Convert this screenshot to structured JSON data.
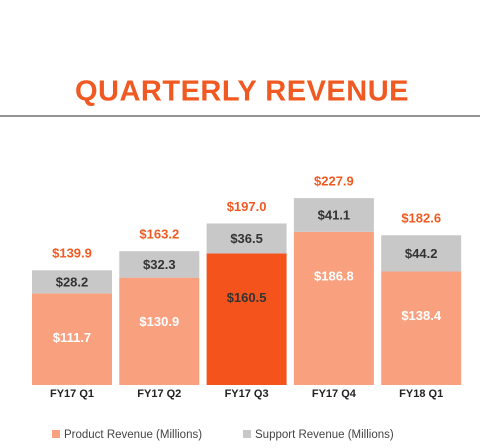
{
  "chart_data": {
    "type": "stacked-bar",
    "title": "QUARTERLY REVENUE",
    "categories": [
      "FY17 Q1",
      "FY17 Q2",
      "FY17 Q3",
      "FY17 Q4",
      "FY18 Q1"
    ],
    "series": [
      {
        "name": "Product Revenue (Millions)",
        "color": "#f9a07f",
        "colors": [
          "#f9a07f",
          "#f9a07f",
          "#f4541c",
          "#f9a07f",
          "#f9a07f"
        ],
        "label_color": "#ffffff",
        "label_colors": [
          "#ffffff",
          "#ffffff",
          "#333333",
          "#ffffff",
          "#ffffff"
        ],
        "values": [
          111.7,
          130.9,
          160.5,
          186.8,
          138.4
        ],
        "value_labels": [
          "$111.7",
          "$130.9",
          "$160.5",
          "$186.8",
          "$138.4"
        ]
      },
      {
        "name": "Support Revenue (Millions)",
        "color": "#c8c8c8",
        "label_color": "#333333",
        "values": [
          28.2,
          32.3,
          36.5,
          41.1,
          44.2
        ],
        "value_labels": [
          "$28.2",
          "$32.3",
          "$36.5",
          "$41.1",
          "$44.2"
        ]
      }
    ],
    "totals": [
      139.9,
      163.2,
      197.0,
      227.9,
      182.6
    ],
    "total_labels": [
      "$139.9",
      "$163.2",
      "$197.0",
      "$227.9",
      "$182.6"
    ]
  }
}
